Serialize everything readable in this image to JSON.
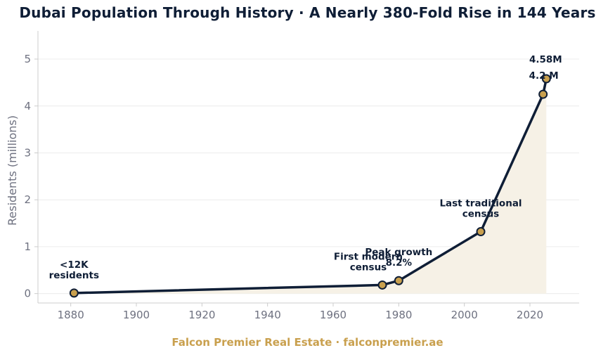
{
  "title": "Dubai Population Through History  ·  A Nearly 380-Fold Rise in 144 Years",
  "footer": "Falcon Premier Real Estate  ·  falconpremier.ae",
  "colors": {
    "line": "#0f1e36",
    "marker_fill": "#c9a04e",
    "area_fill": "#f6f1e6",
    "footer": "#c9a04e",
    "grid": "#ececec",
    "axis": "#cccccc"
  },
  "chart_data": {
    "type": "line",
    "title": "Dubai Population Through History  ·  A Nearly 380-Fold Rise in 144 Years",
    "xlabel": "",
    "ylabel": "Residents (millions)",
    "xlim": [
      1870,
      2035
    ],
    "ylim": [
      -0.2,
      5.6
    ],
    "x_ticks": [
      1880,
      1900,
      1920,
      1940,
      1960,
      1980,
      2000,
      2020
    ],
    "y_ticks": [
      0,
      1,
      2,
      3,
      4,
      5
    ],
    "grid": "horizontal",
    "series": [
      {
        "x": [
          1881,
          1975,
          1980,
          2005,
          2024,
          2025
        ],
        "y": [
          0.012,
          0.183,
          0.276,
          1.321,
          4.25,
          4.58
        ],
        "fill_area": true
      }
    ],
    "annotations": [
      {
        "text": [
          "<12K",
          "residents"
        ],
        "x": 1881,
        "y": 0.012
      },
      {
        "text": [
          "First modern",
          "census"
        ],
        "x": 1975,
        "y": 0.183
      },
      {
        "text": [
          "Peak growth",
          "8.2%"
        ],
        "x": 1980,
        "y": 0.276
      },
      {
        "text": [
          "Last traditional",
          "census"
        ],
        "x": 2005,
        "y": 1.321
      },
      {
        "text": [
          "4.2 M"
        ],
        "x": 2024,
        "y": 4.25
      },
      {
        "text": [
          "4.58M"
        ],
        "x": 2025,
        "y": 4.58
      }
    ]
  }
}
